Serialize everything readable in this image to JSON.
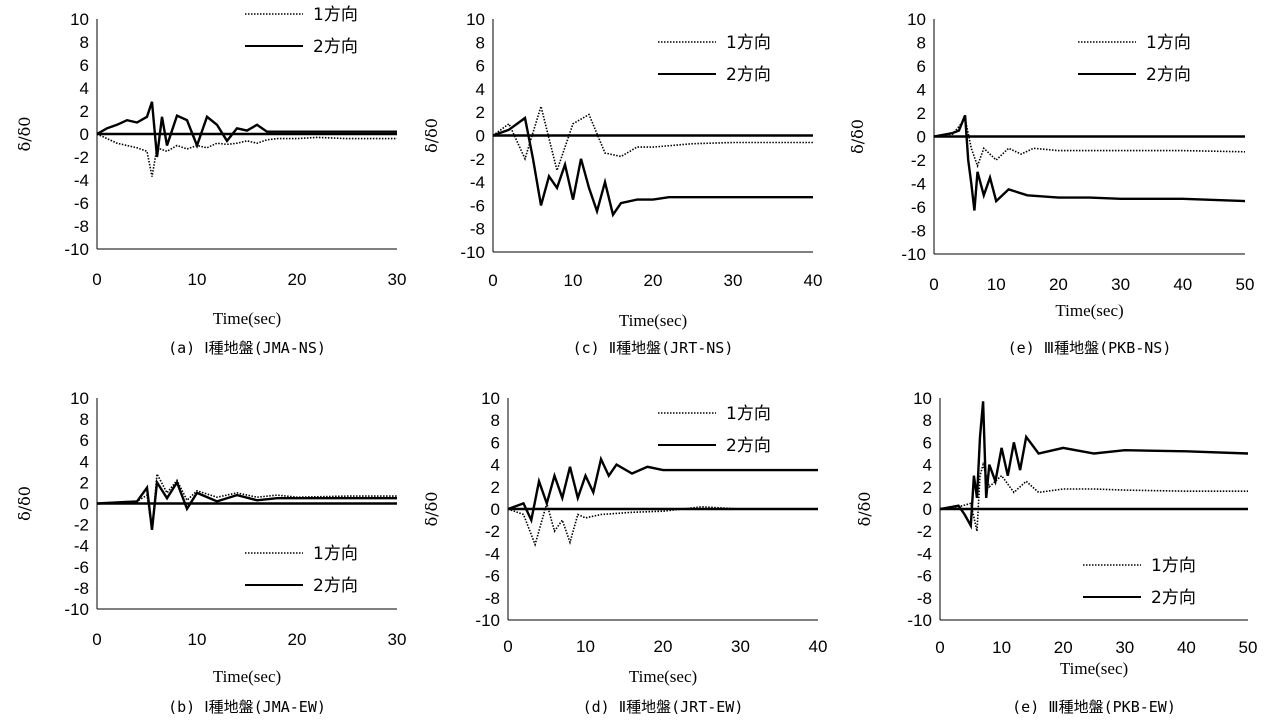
{
  "chart_data": [
    {
      "type": "line",
      "caption": "(a) Ⅰ種地盤(JMA-NS)",
      "xlabel": "Time(sec)",
      "ylabel": "δ/δ0",
      "xlim": [
        0,
        30
      ],
      "xticks": [
        "0",
        "10",
        "20",
        "30"
      ],
      "ylim": [
        -10,
        10
      ],
      "yticks": [
        "10",
        "8",
        "6",
        "4",
        "2",
        "0",
        "-2",
        "-4",
        "-6",
        "-8",
        "-10"
      ],
      "legend": "top-right",
      "series": [
        {
          "name": "1方向",
          "style": "dotted",
          "x": [
            0,
            1,
            2,
            3,
            4,
            5,
            5.5,
            6,
            7,
            8,
            9,
            10,
            11,
            12,
            13,
            14,
            15,
            16,
            17,
            18,
            20,
            22,
            25,
            28,
            30
          ],
          "y": [
            0,
            -0.4,
            -0.8,
            -1.0,
            -1.2,
            -1.5,
            -3.7,
            -1.2,
            -1.5,
            -1.0,
            -1.3,
            -1.0,
            -1.2,
            -0.8,
            -0.9,
            -0.8,
            -0.6,
            -0.8,
            -0.5,
            -0.4,
            -0.4,
            -0.3,
            -0.4,
            -0.4,
            -0.4
          ]
        },
        {
          "name": "2方向",
          "style": "solid",
          "x": [
            0,
            1,
            2,
            3,
            4,
            5,
            5.5,
            6,
            6.5,
            7,
            8,
            9,
            10,
            11,
            12,
            13,
            14,
            15,
            16,
            17,
            18,
            20,
            25,
            30
          ],
          "y": [
            0,
            0.5,
            0.8,
            1.2,
            1.0,
            1.5,
            2.8,
            -2.0,
            1.5,
            -1.0,
            1.6,
            1.2,
            -1.0,
            1.5,
            0.8,
            -0.6,
            0.5,
            0.3,
            0.8,
            0.2,
            0.2,
            0.2,
            0.2,
            0.2
          ]
        }
      ]
    },
    {
      "type": "line",
      "caption": "(c) Ⅱ種地盤(JRT-NS)",
      "xlabel": "Time(sec)",
      "ylabel": "δ/δ0",
      "xlim": [
        0,
        40
      ],
      "xticks": [
        "0",
        "10",
        "20",
        "30",
        "40"
      ],
      "ylim": [
        -10,
        10
      ],
      "yticks": [
        "10",
        "8",
        "6",
        "4",
        "2",
        "0",
        "-2",
        "-4",
        "-6",
        "-8",
        "-10"
      ],
      "legend": "top-right",
      "series": [
        {
          "name": "1方向",
          "style": "dotted",
          "x": [
            0,
            2,
            4,
            6,
            8,
            10,
            12,
            14,
            16,
            18,
            20,
            25,
            30,
            35,
            40
          ],
          "y": [
            0,
            1.0,
            -2.0,
            2.5,
            -3.0,
            1.0,
            1.8,
            -1.5,
            -1.8,
            -1.0,
            -1.0,
            -0.7,
            -0.6,
            -0.6,
            -0.6
          ]
        },
        {
          "name": "2方向",
          "style": "solid",
          "x": [
            0,
            2,
            4,
            5,
            6,
            7,
            8,
            9,
            10,
            11,
            12,
            13,
            14,
            15,
            16,
            18,
            20,
            22,
            25,
            30,
            35,
            40
          ],
          "y": [
            0,
            0.5,
            1.5,
            -2.0,
            -6.0,
            -3.5,
            -4.5,
            -2.5,
            -5.5,
            -2.0,
            -4.5,
            -6.5,
            -4.0,
            -6.8,
            -5.8,
            -5.5,
            -5.5,
            -5.3,
            -5.3,
            -5.3,
            -5.3,
            -5.3
          ]
        }
      ]
    },
    {
      "type": "line",
      "caption": "(e) Ⅲ種地盤(PKB-NS)",
      "xlabel": "Time(sec)",
      "ylabel": "δ/δ0",
      "xlim": [
        0,
        50
      ],
      "xticks": [
        "0",
        "10",
        "20",
        "30",
        "40",
        "50"
      ],
      "ylim": [
        -10,
        10
      ],
      "yticks": [
        "10",
        "8",
        "6",
        "4",
        "2",
        "0",
        "-2",
        "-4",
        "-6",
        "-8",
        "-10"
      ],
      "legend": "top-right",
      "series": [
        {
          "name": "1方向",
          "style": "dotted",
          "x": [
            0,
            3,
            5,
            6,
            7,
            8,
            10,
            12,
            14,
            16,
            20,
            25,
            30,
            40,
            50
          ],
          "y": [
            0,
            0.2,
            1.5,
            -1.0,
            -2.5,
            -1.0,
            -2.0,
            -1.0,
            -1.5,
            -1.0,
            -1.2,
            -1.2,
            -1.2,
            -1.2,
            -1.3
          ]
        },
        {
          "name": "2方向",
          "style": "solid",
          "x": [
            0,
            3,
            4,
            5,
            5.5,
            6,
            6.5,
            7,
            8,
            9,
            10,
            12,
            15,
            20,
            25,
            30,
            40,
            50
          ],
          "y": [
            0,
            0.3,
            0.5,
            1.8,
            -2.0,
            -4.0,
            -6.3,
            -3.0,
            -5.0,
            -3.5,
            -5.5,
            -4.5,
            -5.0,
            -5.2,
            -5.2,
            -5.3,
            -5.3,
            -5.5
          ]
        }
      ]
    },
    {
      "type": "line",
      "caption": "(b) Ⅰ種地盤(JMA-EW)",
      "xlabel": "Time(sec)",
      "ylabel": "δ/δ0",
      "xlim": [
        0,
        30
      ],
      "xticks": [
        "0",
        "10",
        "20",
        "30"
      ],
      "ylim": [
        -10,
        10
      ],
      "yticks": [
        "10",
        "8",
        "6",
        "4",
        "2",
        "0",
        "-2",
        "-4",
        "-6",
        "-8",
        "-10"
      ],
      "legend": "bottom-right",
      "series": [
        {
          "name": "1方向",
          "style": "dotted",
          "x": [
            0,
            2,
            4,
            5,
            5.5,
            6,
            7,
            8,
            9,
            10,
            12,
            14,
            16,
            18,
            20,
            25,
            30
          ],
          "y": [
            0,
            0.1,
            0.2,
            0.8,
            -2.5,
            2.8,
            1.0,
            2.2,
            0.3,
            1.2,
            0.6,
            1.0,
            0.6,
            0.8,
            0.6,
            0.7,
            0.7
          ]
        },
        {
          "name": "2方向",
          "style": "solid",
          "x": [
            0,
            2,
            4,
            5,
            5.5,
            6,
            7,
            8,
            9,
            10,
            12,
            14,
            16,
            18,
            20,
            25,
            30
          ],
          "y": [
            0,
            0.1,
            0.2,
            1.5,
            -2.5,
            2.0,
            0.5,
            2.0,
            -0.5,
            1.0,
            0.2,
            0.8,
            0.3,
            0.5,
            0.5,
            0.5,
            0.5
          ]
        }
      ]
    },
    {
      "type": "line",
      "caption": "(d) Ⅱ種地盤(JRT-EW)",
      "xlabel": "Time(sec)",
      "ylabel": "δ/δ0",
      "xlim": [
        0,
        40
      ],
      "xticks": [
        "0",
        "10",
        "20",
        "30",
        "40"
      ],
      "ylim": [
        -10,
        10
      ],
      "yticks": [
        "10",
        "8",
        "6",
        "4",
        "2",
        "0",
        "-2",
        "-4",
        "-6",
        "-8",
        "-10"
      ],
      "legend": "top-right",
      "series": [
        {
          "name": "1方向",
          "style": "dotted",
          "x": [
            0,
            2,
            3.5,
            5,
            6,
            7,
            8,
            9,
            10,
            12,
            14,
            16,
            20,
            25,
            30,
            40
          ],
          "y": [
            0,
            -0.5,
            -3.2,
            0.5,
            -2.0,
            -1.0,
            -3.0,
            -0.5,
            -0.8,
            -0.5,
            -0.4,
            -0.3,
            -0.2,
            0.2,
            0.0,
            0.0
          ]
        },
        {
          "name": "2方向",
          "style": "solid",
          "x": [
            0,
            2,
            3,
            4,
            5,
            6,
            7,
            8,
            9,
            10,
            11,
            12,
            13,
            14,
            16,
            18,
            20,
            25,
            30,
            35,
            40
          ],
          "y": [
            0,
            0.5,
            -1.0,
            2.5,
            0.5,
            3.0,
            1.0,
            3.8,
            1.0,
            3.0,
            1.5,
            4.5,
            3.0,
            4.0,
            3.2,
            3.8,
            3.5,
            3.5,
            3.5,
            3.5,
            3.5
          ]
        }
      ]
    },
    {
      "type": "line",
      "caption": "(e) Ⅲ種地盤(PKB-EW)",
      "xlabel": "Time(sec)",
      "ylabel": "δ/δ0",
      "xlim": [
        0,
        50
      ],
      "xticks": [
        "0",
        "10",
        "20",
        "30",
        "40",
        "50"
      ],
      "ylim": [
        -10,
        10
      ],
      "yticks": [
        "10",
        "8",
        "6",
        "4",
        "2",
        "0",
        "-2",
        "-4",
        "-6",
        "-8",
        "-10"
      ],
      "legend": "bottom-right",
      "series": [
        {
          "name": "1方向",
          "style": "dotted",
          "x": [
            0,
            3,
            5,
            6,
            6.5,
            7,
            8,
            10,
            12,
            14,
            16,
            20,
            25,
            30,
            40,
            50
          ],
          "y": [
            0,
            0.2,
            0.5,
            -2.0,
            3.0,
            4.0,
            2.0,
            3.0,
            1.5,
            2.5,
            1.5,
            1.8,
            1.8,
            1.7,
            1.6,
            1.6
          ]
        },
        {
          "name": "2方向",
          "style": "solid",
          "x": [
            0,
            3,
            4,
            5,
            5.5,
            6,
            6.5,
            7,
            7.5,
            8,
            9,
            10,
            11,
            12,
            13,
            14,
            16,
            20,
            25,
            30,
            40,
            50
          ],
          "y": [
            0,
            0.3,
            -0.5,
            -1.5,
            3.0,
            1.0,
            6.5,
            9.7,
            1.0,
            4.0,
            2.5,
            5.5,
            3.0,
            6.0,
            3.5,
            6.5,
            5.0,
            5.5,
            5.0,
            5.3,
            5.2,
            5.0
          ]
        }
      ]
    }
  ]
}
